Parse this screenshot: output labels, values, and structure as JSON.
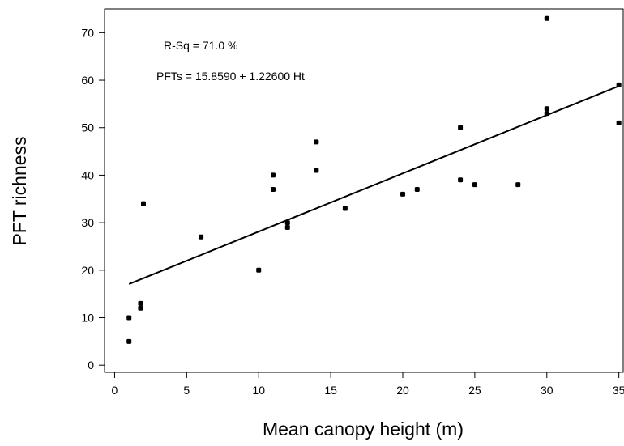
{
  "chart_data": {
    "type": "scatter",
    "xlabel": "Mean canopy height (m)",
    "ylabel": "PFT richness",
    "xlim": [
      -0.7,
      35.3
    ],
    "ylim": [
      -1.5,
      75
    ],
    "xticks": [
      "0",
      "5",
      "10",
      "15",
      "20",
      "25",
      "30",
      "35"
    ],
    "yticks": [
      "0",
      "10",
      "20",
      "30",
      "40",
      "50",
      "60",
      "70"
    ],
    "xtick_values": [
      0,
      5,
      10,
      15,
      20,
      25,
      30,
      35
    ],
    "ytick_values": [
      0,
      10,
      20,
      30,
      40,
      50,
      60,
      70
    ],
    "grid": false,
    "annotations": {
      "r_squared": "R-Sq = 71.0 %",
      "equation": "PFTs = 15.8590 + 1.22600 Ht"
    },
    "points": [
      {
        "x": 1,
        "y": 5
      },
      {
        "x": 1,
        "y": 10
      },
      {
        "x": 1.8,
        "y": 12
      },
      {
        "x": 1.8,
        "y": 13
      },
      {
        "x": 2,
        "y": 34
      },
      {
        "x": 6,
        "y": 27
      },
      {
        "x": 10,
        "y": 20
      },
      {
        "x": 11,
        "y": 37
      },
      {
        "x": 11,
        "y": 40
      },
      {
        "x": 12,
        "y": 29
      },
      {
        "x": 12,
        "y": 30
      },
      {
        "x": 14,
        "y": 41
      },
      {
        "x": 14,
        "y": 47
      },
      {
        "x": 16,
        "y": 33
      },
      {
        "x": 20,
        "y": 36
      },
      {
        "x": 21,
        "y": 37
      },
      {
        "x": 24,
        "y": 39
      },
      {
        "x": 24,
        "y": 50
      },
      {
        "x": 25,
        "y": 38
      },
      {
        "x": 28,
        "y": 38
      },
      {
        "x": 30,
        "y": 53
      },
      {
        "x": 30,
        "y": 54
      },
      {
        "x": 30,
        "y": 73
      },
      {
        "x": 35,
        "y": 51
      },
      {
        "x": 35,
        "y": 59
      }
    ],
    "regression": {
      "intercept": 15.859,
      "slope": 1.226,
      "x_from": 1,
      "x_to": 35
    }
  }
}
